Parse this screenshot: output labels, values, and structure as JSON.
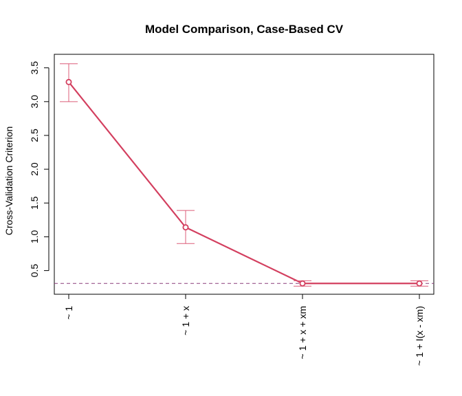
{
  "chart_data": {
    "type": "line",
    "title": "Model Comparison, Case-Based CV",
    "xlabel": "",
    "ylabel": "Cross-Validation Criterion",
    "categories": [
      "~ 1",
      "~ 1 + x",
      "~ 1 + x + xm",
      "~ 1 + I(x - xm)"
    ],
    "series": [
      {
        "values": [
          3.29,
          1.14,
          0.31,
          0.31
        ],
        "lower": [
          3.0,
          0.9,
          0.27,
          0.27
        ],
        "upper": [
          3.56,
          1.39,
          0.35,
          0.35
        ]
      }
    ],
    "reference_line": 0.31,
    "ylim": [
      0.15,
      3.7
    ],
    "yticks": [
      0.5,
      1.0,
      1.5,
      2.0,
      2.5,
      3.0,
      3.5
    ],
    "ytick_labels": [
      "0.5",
      "1.0",
      "1.5",
      "2.0",
      "2.5",
      "3.0",
      "3.5"
    ],
    "grid": false,
    "colors": {
      "line": "#d33f5f",
      "errorbar": "#dc5c78",
      "reference": "#8a3b7a",
      "axis": "#000000"
    }
  }
}
